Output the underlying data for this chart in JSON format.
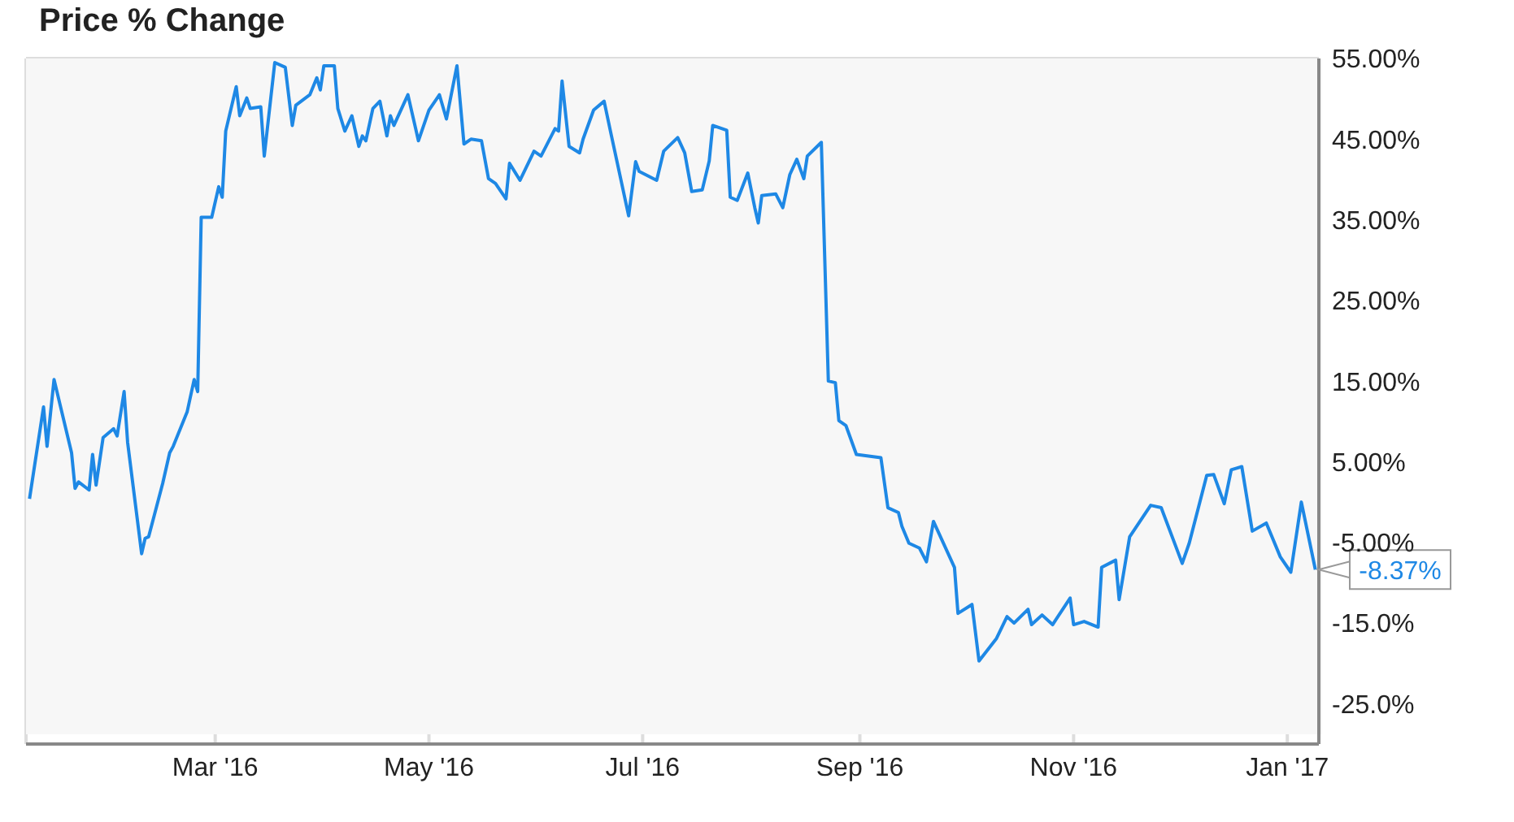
{
  "chart_data": {
    "type": "line",
    "title": "Price % Change",
    "x": [
      "2016-01-08",
      "2016-01-12",
      "2016-01-13",
      "2016-01-15",
      "2016-01-20",
      "2016-01-21",
      "2016-01-22",
      "2016-01-25",
      "2016-01-26",
      "2016-01-27",
      "2016-01-29",
      "2016-02-01",
      "2016-02-02",
      "2016-02-04",
      "2016-02-05",
      "2016-02-09",
      "2016-02-10",
      "2016-02-11",
      "2016-02-15",
      "2016-02-17",
      "2016-02-18",
      "2016-02-22",
      "2016-02-24",
      "2016-02-25",
      "2016-02-26",
      "2016-02-29",
      "2016-03-02",
      "2016-03-03",
      "2016-03-04",
      "2016-03-07",
      "2016-03-08",
      "2016-03-10",
      "2016-03-11",
      "2016-03-14",
      "2016-03-15",
      "2016-03-18",
      "2016-03-21",
      "2016-03-23",
      "2016-03-24",
      "2016-03-28",
      "2016-03-30",
      "2016-03-31",
      "2016-04-01",
      "2016-04-04",
      "2016-04-05",
      "2016-04-07",
      "2016-04-09",
      "2016-04-11",
      "2016-04-12",
      "2016-04-13",
      "2016-04-15",
      "2016-04-17",
      "2016-04-19",
      "2016-04-20",
      "2016-04-21",
      "2016-04-25",
      "2016-04-28",
      "2016-05-01",
      "2016-05-04",
      "2016-05-06",
      "2016-05-09",
      "2016-05-11",
      "2016-05-13",
      "2016-05-16",
      "2016-05-18",
      "2016-05-20",
      "2016-05-23",
      "2016-05-24",
      "2016-05-27",
      "2016-05-31",
      "2016-06-02",
      "2016-06-06",
      "2016-06-07",
      "2016-06-08",
      "2016-06-10",
      "2016-06-13",
      "2016-06-14",
      "2016-06-17",
      "2016-06-20",
      "2016-06-22",
      "2016-06-27",
      "2016-06-29",
      "2016-06-30",
      "2016-07-05",
      "2016-07-07",
      "2016-07-11",
      "2016-07-13",
      "2016-07-15",
      "2016-07-18",
      "2016-07-20",
      "2016-07-21",
      "2016-07-25",
      "2016-07-26",
      "2016-07-28",
      "2016-07-31",
      "2016-08-02",
      "2016-08-03",
      "2016-08-04",
      "2016-08-08",
      "2016-08-10",
      "2016-08-12",
      "2016-08-14",
      "2016-08-16",
      "2016-08-17",
      "2016-08-21",
      "2016-08-23",
      "2016-08-25",
      "2016-08-26",
      "2016-08-28",
      "2016-08-31",
      "2016-09-07",
      "2016-09-09",
      "2016-09-12",
      "2016-09-13",
      "2016-09-15",
      "2016-09-18",
      "2016-09-20",
      "2016-09-22",
      "2016-09-28",
      "2016-09-29",
      "2016-10-03",
      "2016-10-05",
      "2016-10-10",
      "2016-10-13",
      "2016-10-15",
      "2016-10-19",
      "2016-10-20",
      "2016-10-23",
      "2016-10-26",
      "2016-10-31",
      "2016-11-01",
      "2016-11-04",
      "2016-11-08",
      "2016-11-09",
      "2016-11-13",
      "2016-11-14",
      "2016-11-17",
      "2016-11-23",
      "2016-11-26",
      "2016-12-02",
      "2016-12-04",
      "2016-12-09",
      "2016-12-11",
      "2016-12-14",
      "2016-12-16",
      "2016-12-19",
      "2016-12-22",
      "2016-12-26",
      "2016-12-30",
      "2017-01-02",
      "2017-01-05",
      "2017-01-09"
    ],
    "series": [
      {
        "color": "#1e88e5",
        "values": [
          0.4,
          11.8,
          6.9,
          15.2,
          6.1,
          1.7,
          2.5,
          1.5,
          5.9,
          2.1,
          8.0,
          9.1,
          8.2,
          13.7,
          7.4,
          -6.4,
          -4.5,
          -4.3,
          2.3,
          6.1,
          6.9,
          11.2,
          15.2,
          13.7,
          35.3,
          35.3,
          39.1,
          37.8,
          46,
          51.5,
          47.9,
          50.1,
          48.8,
          49,
          42.9,
          54.5,
          53.9,
          46.7,
          49.2,
          50.5,
          52.6,
          51.1,
          54.1,
          54.1,
          48.8,
          46,
          47.9,
          44.1,
          45.4,
          44.8,
          48.8,
          49.7,
          45.4,
          47.9,
          46.7,
          50.5,
          44.8,
          48.6,
          50.5,
          47.5,
          54.1,
          44.4,
          45,
          44.8,
          40.1,
          39.5,
          37.6,
          42,
          39.9,
          43.5,
          42.9,
          46.3,
          46,
          52.2,
          44.1,
          43.3,
          45,
          48.6,
          49.7,
          45.6,
          35.5,
          42.2,
          41,
          39.9,
          43.5,
          45.2,
          43.3,
          38.5,
          38.7,
          42.3,
          46.7,
          46.1,
          37.8,
          37.4,
          40.8,
          36.5,
          34.6,
          38,
          38.2,
          36.5,
          40.6,
          42.5,
          40.1,
          42.9,
          44.6,
          15,
          14.8,
          10.1,
          9.5,
          5.9,
          5.5,
          -0.7,
          -1.3,
          -3,
          -5.1,
          -5.7,
          -7.4,
          -2.4,
          -8.1,
          -13.8,
          -12.7,
          -19.7,
          -16.9,
          -14.2,
          -15,
          -13.3,
          -15.2,
          -14,
          -15.2,
          -11.9,
          -15.2,
          -14.8,
          -15.5,
          -8.1,
          -7.2,
          -12.1,
          -4.3,
          -0.4,
          -0.7,
          -7.6,
          -5.1,
          3.3,
          3.4,
          -0.2,
          4,
          4.4,
          -3.6,
          -2.6,
          -6.8,
          -8.7,
          0,
          -8.37
        ]
      }
    ],
    "xlim": [
      "2016-01-07",
      "2017-01-10"
    ],
    "xticks": [
      {
        "value": "2016-03-01",
        "label": "Mar '16"
      },
      {
        "value": "2016-05-01",
        "label": "May '16"
      },
      {
        "value": "2016-07-01",
        "label": "Jul '16"
      },
      {
        "value": "2016-09-01",
        "label": "Sep '16"
      },
      {
        "value": "2016-11-01",
        "label": "Nov '16"
      },
      {
        "value": "2017-01-01",
        "label": "Jan '17"
      }
    ],
    "ylim": [
      -30,
      55
    ],
    "yticks": [
      {
        "value": -25,
        "label": "-25.0%"
      },
      {
        "value": -15,
        "label": "-15.0%"
      },
      {
        "value": -5,
        "label": "-5.00%"
      },
      {
        "value": 5,
        "label": "5.00%"
      },
      {
        "value": 15,
        "label": "15.00%"
      },
      {
        "value": 25,
        "label": "25.00%"
      },
      {
        "value": 35,
        "label": "35.00%"
      },
      {
        "value": 45,
        "label": "45.00%"
      },
      {
        "value": 55,
        "label": "55.00%"
      }
    ],
    "grid": true,
    "legend": false,
    "marker": "none",
    "line_style": "solid",
    "annotations": [
      {
        "text": "-8.37%",
        "x": "2017-01-09",
        "y": -8.37
      }
    ]
  }
}
